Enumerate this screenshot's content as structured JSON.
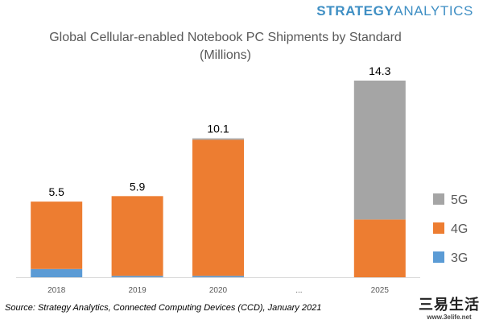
{
  "brand": {
    "part1": "STRATEGY",
    "part2": "ANALYTICS"
  },
  "chart_data": {
    "type": "bar",
    "stacked": true,
    "title": "Global Cellular-enabled Notebook PC Shipments by Standard",
    "subtitle": "(Millions)",
    "categories": [
      "2018",
      "2019",
      "2020",
      "...",
      "2025"
    ],
    "series": [
      {
        "name": "3G",
        "color": "#5b9bd5",
        "values": [
          0.6,
          0.1,
          0.1,
          null,
          0.0
        ]
      },
      {
        "name": "4G",
        "color": "#ed7d31",
        "values": [
          4.9,
          5.8,
          9.9,
          null,
          4.2
        ]
      },
      {
        "name": "5G",
        "color": "#a5a5a5",
        "values": [
          0.0,
          0.0,
          0.1,
          null,
          10.1
        ]
      }
    ],
    "totals": [
      "5.5",
      "5.9",
      "10.1",
      null,
      "14.3"
    ],
    "ylim": [
      0,
      14.3
    ],
    "legend_position": "right"
  },
  "source": "Source: Strategy Analytics, Connected Computing Devices (CCD), January 2021",
  "watermark": {
    "text": "三易生活",
    "url": "www.3elife.net"
  }
}
